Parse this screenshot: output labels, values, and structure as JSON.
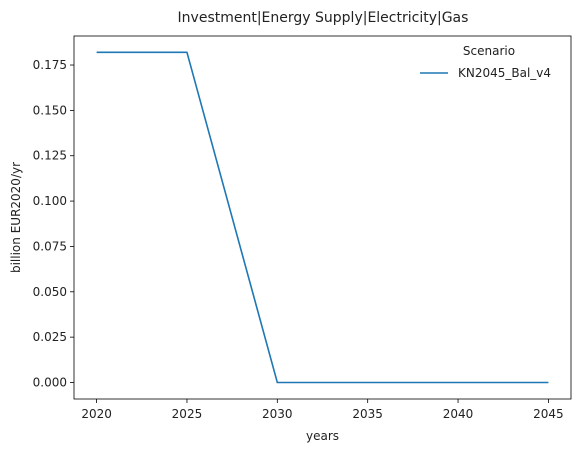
{
  "chart_data": {
    "type": "line",
    "title": "Investment|Energy Supply|Electricity|Gas",
    "xlabel": "years",
    "ylabel": "billion EUR2020/yr",
    "x": [
      2020,
      2025,
      2030,
      2035,
      2040,
      2045
    ],
    "x_ticks": [
      2020,
      2025,
      2030,
      2035,
      2040,
      2045
    ],
    "y_ticks": [
      0.0,
      0.025,
      0.05,
      0.075,
      0.1,
      0.125,
      0.15,
      0.175
    ],
    "y_tick_labels": [
      "0.000",
      "0.025",
      "0.050",
      "0.075",
      "0.100",
      "0.125",
      "0.150",
      "0.175"
    ],
    "xlim": [
      2018.75,
      2046.25
    ],
    "ylim": [
      -0.0091,
      0.191
    ],
    "grid": false,
    "legend": {
      "title": "Scenario",
      "placement": "top-right"
    },
    "series": [
      {
        "name": "KN2045_Bal_v4",
        "color": "#1f77b4",
        "values": [
          0.182,
          0.182,
          0.0,
          0.0,
          0.0,
          0.0
        ]
      }
    ]
  }
}
